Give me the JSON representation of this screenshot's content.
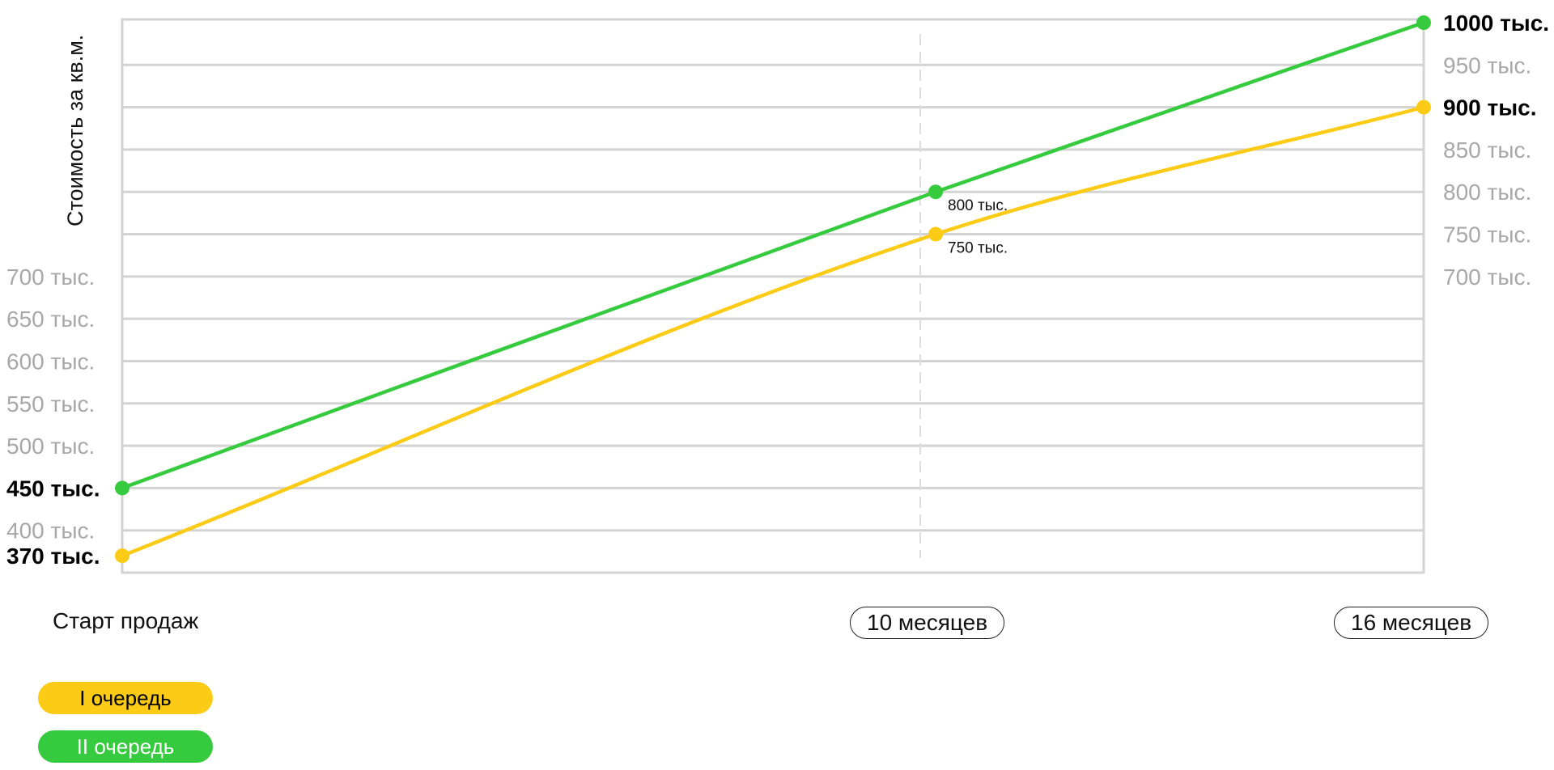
{
  "chart_data": {
    "type": "line",
    "ylabel": "Стоимость за  кв.м.",
    "x": [
      "Старт продаж",
      "10 месяцев",
      "16 месяцев"
    ],
    "x_values": [
      0,
      10,
      16
    ],
    "ylim": [
      350,
      1000
    ],
    "y_ticks_left": [
      "700 тыс.",
      "650 тыс.",
      "600 тыс.",
      "550 тыс.",
      "500 тыс.",
      "450 тыс.",
      "400 тыс.",
      "370 тыс."
    ],
    "y_ticks_right": [
      "1000 тыс.",
      "950 тыс.",
      "900 тыс.",
      "850 тыс.",
      "800 тыс.",
      "750 тыс.",
      "700 тыс."
    ],
    "series": [
      {
        "name": "I очередь",
        "color": "#fccb16",
        "values": [
          370,
          750,
          900
        ]
      },
      {
        "name": "II очередь",
        "color": "#36cb3f",
        "values": [
          450,
          800,
          1000
        ]
      }
    ],
    "point_labels": [
      "800 тыс.",
      "750 тыс."
    ],
    "grid": true,
    "legend_position": "bottom-left"
  }
}
